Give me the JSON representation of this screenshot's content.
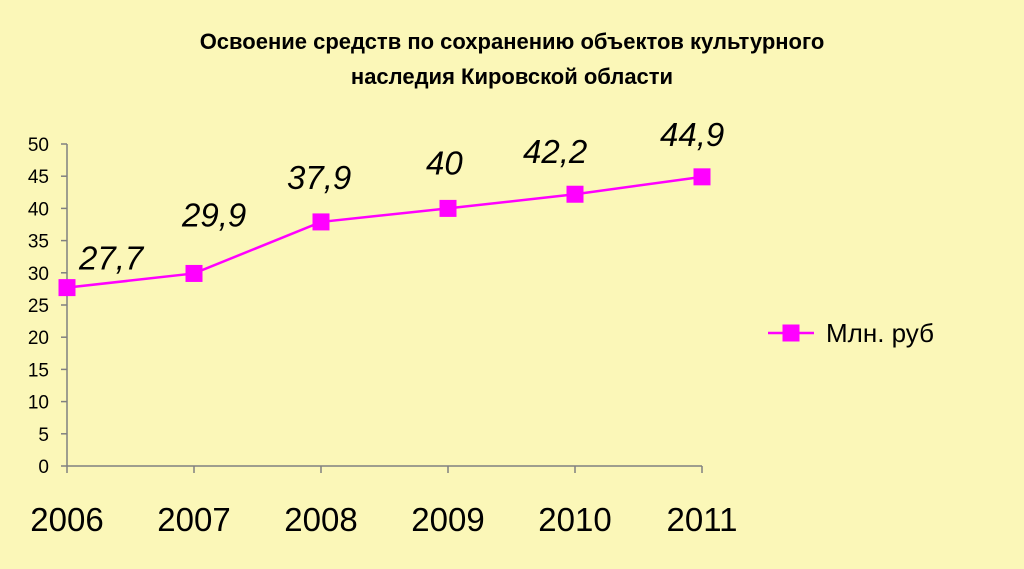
{
  "chart_data": {
    "type": "line",
    "title_lines": [
      "Освоение средств по сохранению объектов культурного",
      "наследия Кировской области"
    ],
    "x": [
      "2006",
      "2007",
      "2008",
      "2009",
      "2010",
      "2011"
    ],
    "series": [
      {
        "name": "Млн. руб",
        "values": [
          27.7,
          29.9,
          37.9,
          40,
          42.2,
          44.9
        ],
        "data_labels": [
          "27,7",
          "29,9",
          "37,9",
          "40",
          "42,2",
          "44,9"
        ],
        "color": "#ff00ff",
        "marker": "square"
      }
    ],
    "ylim": [
      0,
      50
    ],
    "yticks": [
      0,
      5,
      10,
      15,
      20,
      25,
      30,
      35,
      40,
      45,
      50
    ],
    "grid": false,
    "legend_position": "right"
  },
  "colors": {
    "background": "#fbf7b8",
    "axis": "#808080",
    "text": "#000000"
  }
}
